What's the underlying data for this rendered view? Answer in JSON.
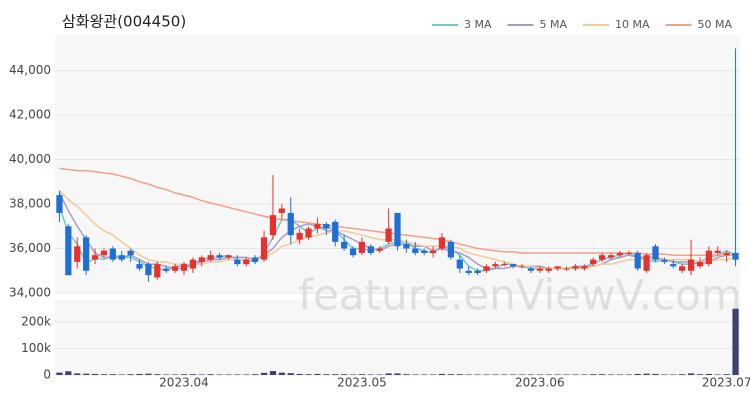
{
  "chart_data": {
    "type": "candlestick",
    "title": "삼화왕관(004450)",
    "watermark": "feature.enViewV.com",
    "up_color": "#e8312f",
    "down_color": "#1f6fd6",
    "volume_color": "#3c4170",
    "categories": [
      null,
      null,
      null,
      null,
      null,
      null,
      null,
      null,
      null,
      null,
      null,
      null,
      null,
      null,
      "2023.04",
      null,
      null,
      null,
      null,
      null,
      null,
      null,
      null,
      null,
      null,
      null,
      null,
      null,
      null,
      null,
      null,
      null,
      null,
      null,
      "2023.05",
      null,
      null,
      null,
      null,
      null,
      null,
      null,
      null,
      null,
      null,
      null,
      null,
      null,
      null,
      null,
      null,
      null,
      null,
      null,
      "2023.06",
      null,
      null,
      null,
      null,
      null,
      null,
      null,
      null,
      null,
      null,
      null,
      null,
      null,
      null,
      null,
      null,
      null,
      null,
      null,
      null,
      "2023.07",
      null
    ],
    "open": [
      38400,
      37000,
      35400,
      36500,
      35500,
      35700,
      36000,
      35700,
      35900,
      35300,
      35300,
      34700,
      35100,
      35000,
      35000,
      35100,
      35400,
      35500,
      35700,
      35600,
      35500,
      35300,
      35600,
      35500,
      36600,
      37600,
      37600,
      36400,
      36500,
      36900,
      37100,
      37200,
      36300,
      36000,
      35800,
      36100,
      35900,
      36300,
      37600,
      36200,
      36000,
      35900,
      35800,
      36000,
      36300,
      35500,
      35000,
      35000,
      35000,
      35200,
      35300,
      35300,
      35200,
      35100,
      35000,
      35000,
      35100,
      35100,
      35100,
      35100,
      35300,
      35500,
      35600,
      35700,
      35800,
      35800,
      35000,
      36100,
      35500,
      35300,
      35000,
      35000,
      35200,
      35300,
      35800,
      35700,
      35800
    ],
    "high": [
      38600,
      37100,
      36500,
      36600,
      36000,
      36000,
      36100,
      35900,
      36000,
      35500,
      35400,
      35400,
      35200,
      35300,
      35400,
      35600,
      35700,
      35900,
      35800,
      35700,
      35700,
      35600,
      35700,
      36800,
      39300,
      38000,
      38300,
      36900,
      37000,
      37400,
      37200,
      37300,
      36600,
      36100,
      36500,
      36200,
      36100,
      37800,
      37600,
      36400,
      36300,
      36000,
      36100,
      36700,
      36400,
      35700,
      35200,
      35100,
      35300,
      35400,
      35400,
      35300,
      35300,
      35200,
      35200,
      35200,
      35200,
      35200,
      35300,
      35300,
      35600,
      35800,
      35800,
      35900,
      35900,
      35900,
      35800,
      36200,
      35600,
      35500,
      35300,
      36400,
      35600,
      36100,
      36100,
      35900,
      45000
    ],
    "low": [
      37200,
      34800,
      35100,
      34800,
      35300,
      35600,
      35400,
      35400,
      35400,
      35000,
      34500,
      34600,
      34900,
      34900,
      34800,
      34900,
      35200,
      35400,
      35500,
      35500,
      35200,
      35200,
      35300,
      35400,
      36400,
      37300,
      36200,
      36200,
      36400,
      36700,
      36600,
      36100,
      35900,
      35600,
      35700,
      35700,
      35800,
      36200,
      35900,
      35800,
      35700,
      35700,
      35600,
      35900,
      35500,
      34900,
      34800,
      34800,
      34900,
      35100,
      35200,
      35100,
      35100,
      34900,
      34900,
      34900,
      35000,
      35000,
      35000,
      35000,
      35200,
      35400,
      35500,
      35600,
      35700,
      35000,
      34900,
      35400,
      35300,
      35100,
      34900,
      34800,
      35100,
      35200,
      35700,
      35400,
      35200
    ],
    "close": [
      37600,
      34800,
      36100,
      35000,
      35700,
      35900,
      35500,
      35500,
      35700,
      35100,
      34800,
      35300,
      35000,
      35200,
      35300,
      35500,
      35600,
      35700,
      35600,
      35700,
      35300,
      35500,
      35400,
      36500,
      37500,
      37800,
      36600,
      36700,
      36900,
      37100,
      36900,
      36300,
      36000,
      35700,
      36300,
      35800,
      36000,
      36900,
      36100,
      36000,
      35800,
      35800,
      35900,
      36500,
      35600,
      35100,
      34900,
      34900,
      35200,
      35300,
      35300,
      35200,
      35200,
      35000,
      35100,
      35100,
      35200,
      35100,
      35200,
      35200,
      35500,
      35700,
      35700,
      35800,
      35800,
      35100,
      35700,
      35500,
      35400,
      35200,
      35200,
      35500,
      35400,
      35900,
      35900,
      35800,
      35500
    ],
    "volume": [
      9000,
      14000,
      6000,
      5000,
      4000,
      3000,
      3000,
      2000,
      3000,
      4000,
      5000,
      3000,
      2000,
      2000,
      3000,
      3000,
      2000,
      3000,
      2000,
      2000,
      2000,
      2000,
      3000,
      8000,
      15000,
      9000,
      7000,
      4000,
      3000,
      4000,
      3000,
      3000,
      3000,
      2000,
      3000,
      2000,
      2000,
      6000,
      6000,
      3000,
      2000,
      2000,
      2000,
      4000,
      3000,
      3000,
      2000,
      2000,
      2000,
      2000,
      2000,
      2000,
      2000,
      2000,
      2000,
      2000,
      2000,
      2000,
      2000,
      2000,
      3000,
      3000,
      2000,
      2000,
      2000,
      4000,
      5000,
      4000,
      2000,
      2000,
      3000,
      6000,
      3000,
      4000,
      2000,
      3000,
      250000
    ],
    "series": [
      {
        "name": "3 MA",
        "color": "#6cc9cf",
        "values": [
          37900,
          36700,
          36200,
          35300,
          35600,
          35500,
          35700,
          35600,
          35600,
          35400,
          35200,
          35100,
          35000,
          35200,
          35200,
          35300,
          35500,
          35600,
          35600,
          35700,
          35500,
          35500,
          35400,
          35800,
          36500,
          37300,
          37300,
          37000,
          36700,
          36900,
          37000,
          36800,
          36400,
          36000,
          36000,
          35900,
          36000,
          36200,
          36300,
          36300,
          36000,
          35900,
          35800,
          36100,
          36000,
          35700,
          35200,
          35000,
          35000,
          35100,
          35300,
          35300,
          35200,
          35100,
          35100,
          35100,
          35100,
          35100,
          35200,
          35200,
          35300,
          35500,
          35600,
          35700,
          35800,
          35600,
          35500,
          35400,
          35500,
          35400,
          35300,
          35300,
          35400,
          35600,
          35700,
          35900,
          35700
        ]
      },
      {
        "name": "5 MA",
        "color": "#a99bc6",
        "values": [
          38500,
          37700,
          37000,
          36400,
          35800,
          35600,
          35600,
          35600,
          35700,
          35500,
          35300,
          35300,
          35200,
          35100,
          35100,
          35300,
          35400,
          35500,
          35500,
          35600,
          35600,
          35600,
          35500,
          35700,
          36000,
          36500,
          36800,
          37000,
          37100,
          37000,
          36800,
          36800,
          36600,
          36400,
          36200,
          36000,
          35900,
          36100,
          36200,
          36200,
          36100,
          36100,
          35900,
          36000,
          35900,
          35800,
          35600,
          35300,
          35100,
          35100,
          35100,
          35200,
          35200,
          35200,
          35200,
          35100,
          35100,
          35100,
          35100,
          35200,
          35200,
          35300,
          35500,
          35600,
          35700,
          35600,
          35600,
          35600,
          35500,
          35400,
          35400,
          35400,
          35300,
          35400,
          35600,
          35700,
          35700
        ]
      },
      {
        "name": "10 MA",
        "color": "#f3c994",
        "values": [
          38600,
          38200,
          37900,
          37500,
          37100,
          36800,
          36600,
          36300,
          36000,
          35700,
          35500,
          35400,
          35400,
          35300,
          35300,
          35300,
          35300,
          35400,
          35400,
          35500,
          35500,
          35500,
          35500,
          35600,
          35800,
          36100,
          36200,
          36400,
          36500,
          36600,
          36700,
          36800,
          36800,
          36700,
          36600,
          36500,
          36400,
          36400,
          36400,
          36300,
          36200,
          36100,
          36100,
          36100,
          36100,
          36000,
          35800,
          35700,
          35600,
          35500,
          35400,
          35300,
          35200,
          35200,
          35100,
          35100,
          35100,
          35100,
          35100,
          35100,
          35200,
          35300,
          35300,
          35400,
          35500,
          35500,
          35500,
          35500,
          35500,
          35500,
          35500,
          35500,
          35400,
          35400,
          35500,
          35500,
          35600
        ]
      },
      {
        "name": "50 MA",
        "color": "#f2a08a",
        "values": [
          39600,
          39550,
          39500,
          39500,
          39450,
          39400,
          39350,
          39250,
          39150,
          39000,
          38900,
          38750,
          38650,
          38500,
          38400,
          38300,
          38150,
          38050,
          37950,
          37850,
          37750,
          37650,
          37550,
          37450,
          37350,
          37300,
          37250,
          37200,
          37150,
          37100,
          37050,
          37000,
          36950,
          36900,
          36850,
          36800,
          36750,
          36700,
          36650,
          36600,
          36550,
          36500,
          36450,
          36400,
          36300,
          36200,
          36100,
          36000,
          35950,
          35900,
          35850,
          35850,
          35800,
          35800,
          35800,
          35800,
          35800,
          35800,
          35800,
          35800,
          35800,
          35800,
          35800,
          35800,
          35800,
          35800,
          35750,
          35750,
          35750,
          35700,
          35700,
          35700,
          35700,
          35700,
          35700,
          35700,
          35700
        ]
      }
    ],
    "ylim": [
      34000,
      45600
    ],
    "yticks": [
      {
        "value": 34000,
        "label": "34,000"
      },
      {
        "value": 36000,
        "label": "36,000"
      },
      {
        "value": 38000,
        "label": "38,000"
      },
      {
        "value": 40000,
        "label": "40,000"
      },
      {
        "value": 42000,
        "label": "42,000"
      },
      {
        "value": 44000,
        "label": "44,000"
      }
    ],
    "volume_ylim": [
      0,
      283000
    ],
    "volume_yticks": [
      0,
      {
        "value": 100000,
        "label": "100k"
      },
      {
        "value": 200000,
        "label": "200k"
      }
    ],
    "grid": true
  }
}
